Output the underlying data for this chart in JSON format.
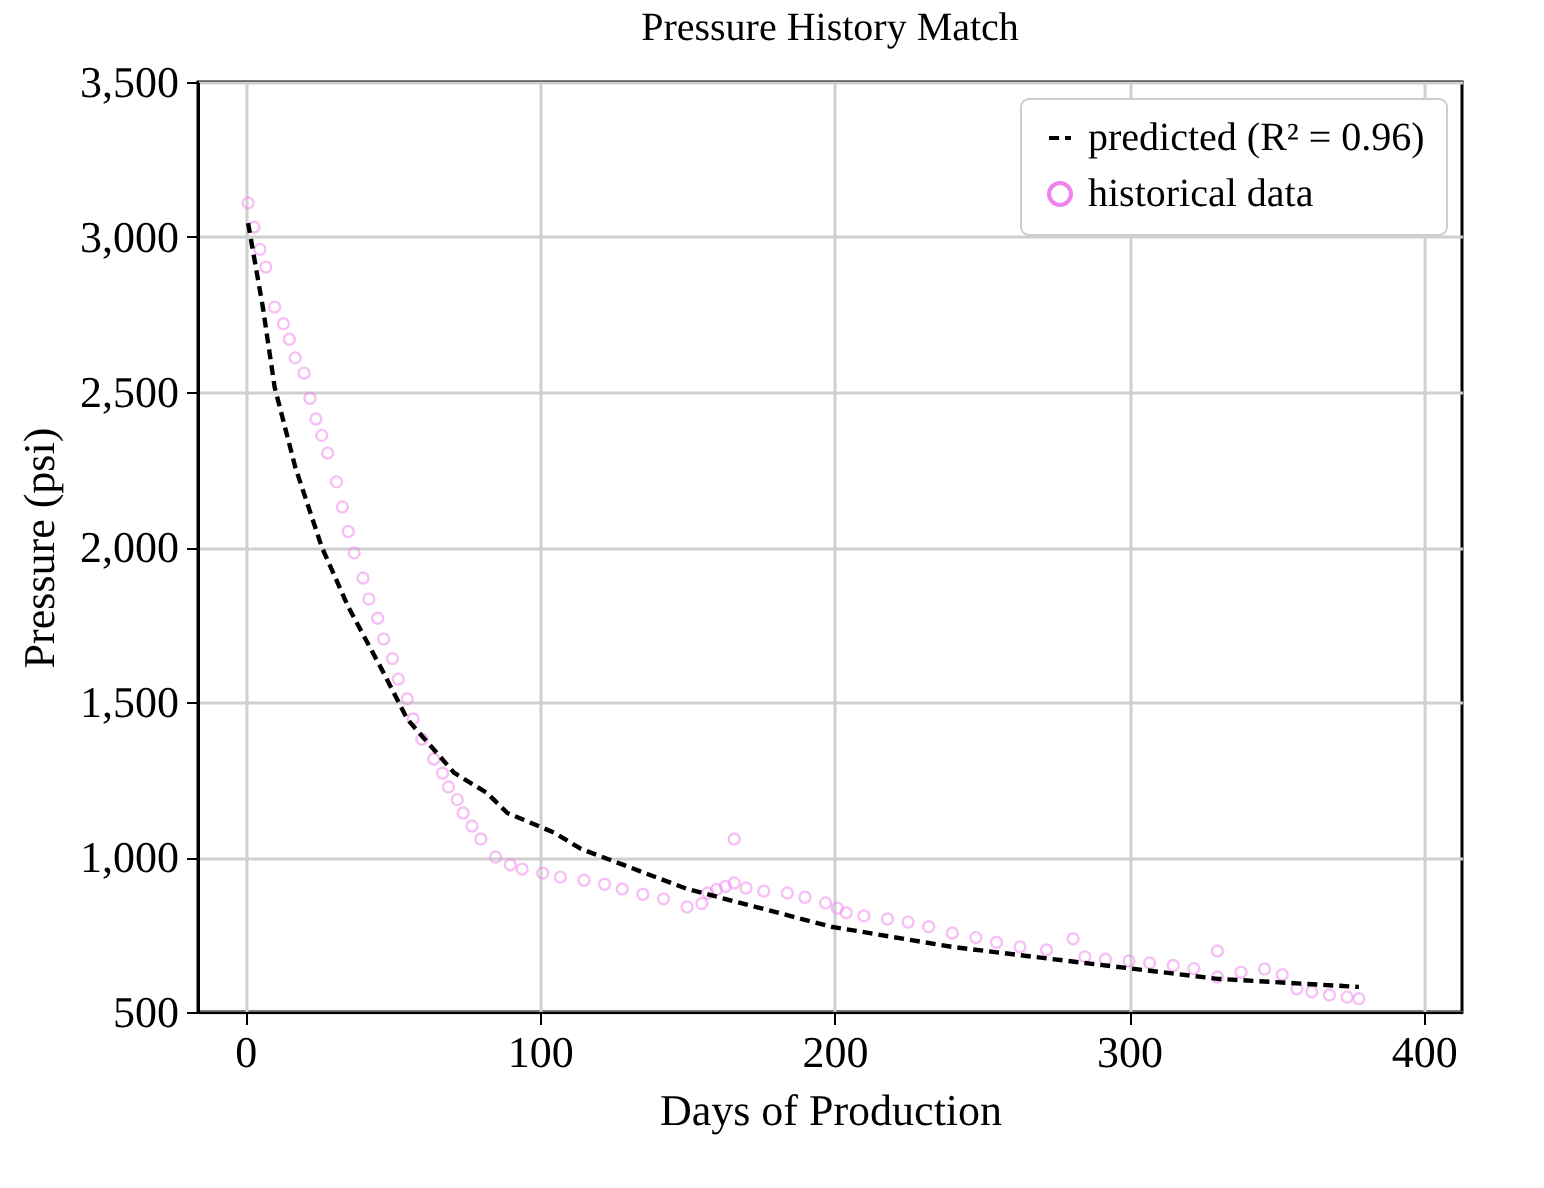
{
  "chart_data": {
    "type": "scatter",
    "title": "Pressure History Match",
    "xlabel": "Days of Production",
    "ylabel": "Pressure (psi)",
    "xlim": [
      -16,
      413
    ],
    "ylim": [
      500,
      3500
    ],
    "xticks": [
      0,
      100,
      200,
      300,
      400
    ],
    "yticks": [
      {
        "value": 500,
        "label": "500"
      },
      {
        "value": 1000,
        "label": "1,000"
      },
      {
        "value": 1500,
        "label": "1,500"
      },
      {
        "value": 2000,
        "label": "2,000"
      },
      {
        "value": 2500,
        "label": "2,500"
      },
      {
        "value": 3000,
        "label": "3,000"
      },
      {
        "value": 3500,
        "label": "3,500"
      }
    ],
    "grid": true,
    "legend": "top right",
    "series": [
      {
        "name": "predicted (R² = 0.96)",
        "type": "line",
        "line_style": "dashed",
        "marker": "none",
        "color": "#000000",
        "x": [
          1,
          6,
          10,
          17,
          26,
          35,
          47,
          55,
          71,
          82,
          89,
          105,
          114,
          150,
          199,
          240,
          285,
          330,
          378
        ],
        "values": [
          3045,
          2774,
          2516,
          2258,
          2000,
          1807,
          1594,
          1445,
          1271,
          1207,
          1142,
          1078,
          1026,
          897,
          775,
          710,
          658,
          607,
          581
        ]
      },
      {
        "name": "historical data",
        "marker": "circle",
        "color": "#ee82ee",
        "x": [
          1,
          3,
          5,
          7,
          10,
          13,
          15,
          17,
          20,
          22,
          24,
          26,
          28,
          31,
          33,
          35,
          37,
          40,
          42,
          45,
          47,
          50,
          52,
          55,
          57,
          60,
          64,
          67,
          69,
          72,
          74,
          77,
          80,
          85,
          90,
          94,
          101,
          107,
          115,
          122,
          128,
          135,
          142,
          150,
          155,
          157,
          160,
          163,
          166,
          166,
          170,
          176,
          184,
          190,
          197,
          201,
          204,
          210,
          218,
          225,
          232,
          240,
          248,
          255,
          263,
          272,
          281,
          285,
          292,
          300,
          307,
          315,
          322,
          330,
          330,
          338,
          346,
          352,
          357,
          362,
          368,
          374,
          378
        ],
        "values": [
          3110,
          3032,
          2960,
          2903,
          2774,
          2720,
          2670,
          2610,
          2561,
          2480,
          2413,
          2360,
          2303,
          2210,
          2129,
          2050,
          1981,
          1900,
          1832,
          1770,
          1703,
          1640,
          1574,
          1510,
          1445,
          1380,
          1316,
          1270,
          1226,
          1185,
          1142,
          1100,
          1058,
          1000,
          975,
          961,
          948,
          935,
          925,
          912,
          897,
          880,
          865,
          839,
          850,
          884,
          895,
          905,
          916,
          1058,
          900,
          890,
          884,
          870,
          852,
          835,
          820,
          810,
          800,
          790,
          775,
          755,
          740,
          725,
          710,
          700,
          736,
          678,
          670,
          665,
          658,
          650,
          640,
          697,
          613,
          628,
          639,
          620,
          575,
          565,
          555,
          548,
          543
        ]
      }
    ]
  }
}
